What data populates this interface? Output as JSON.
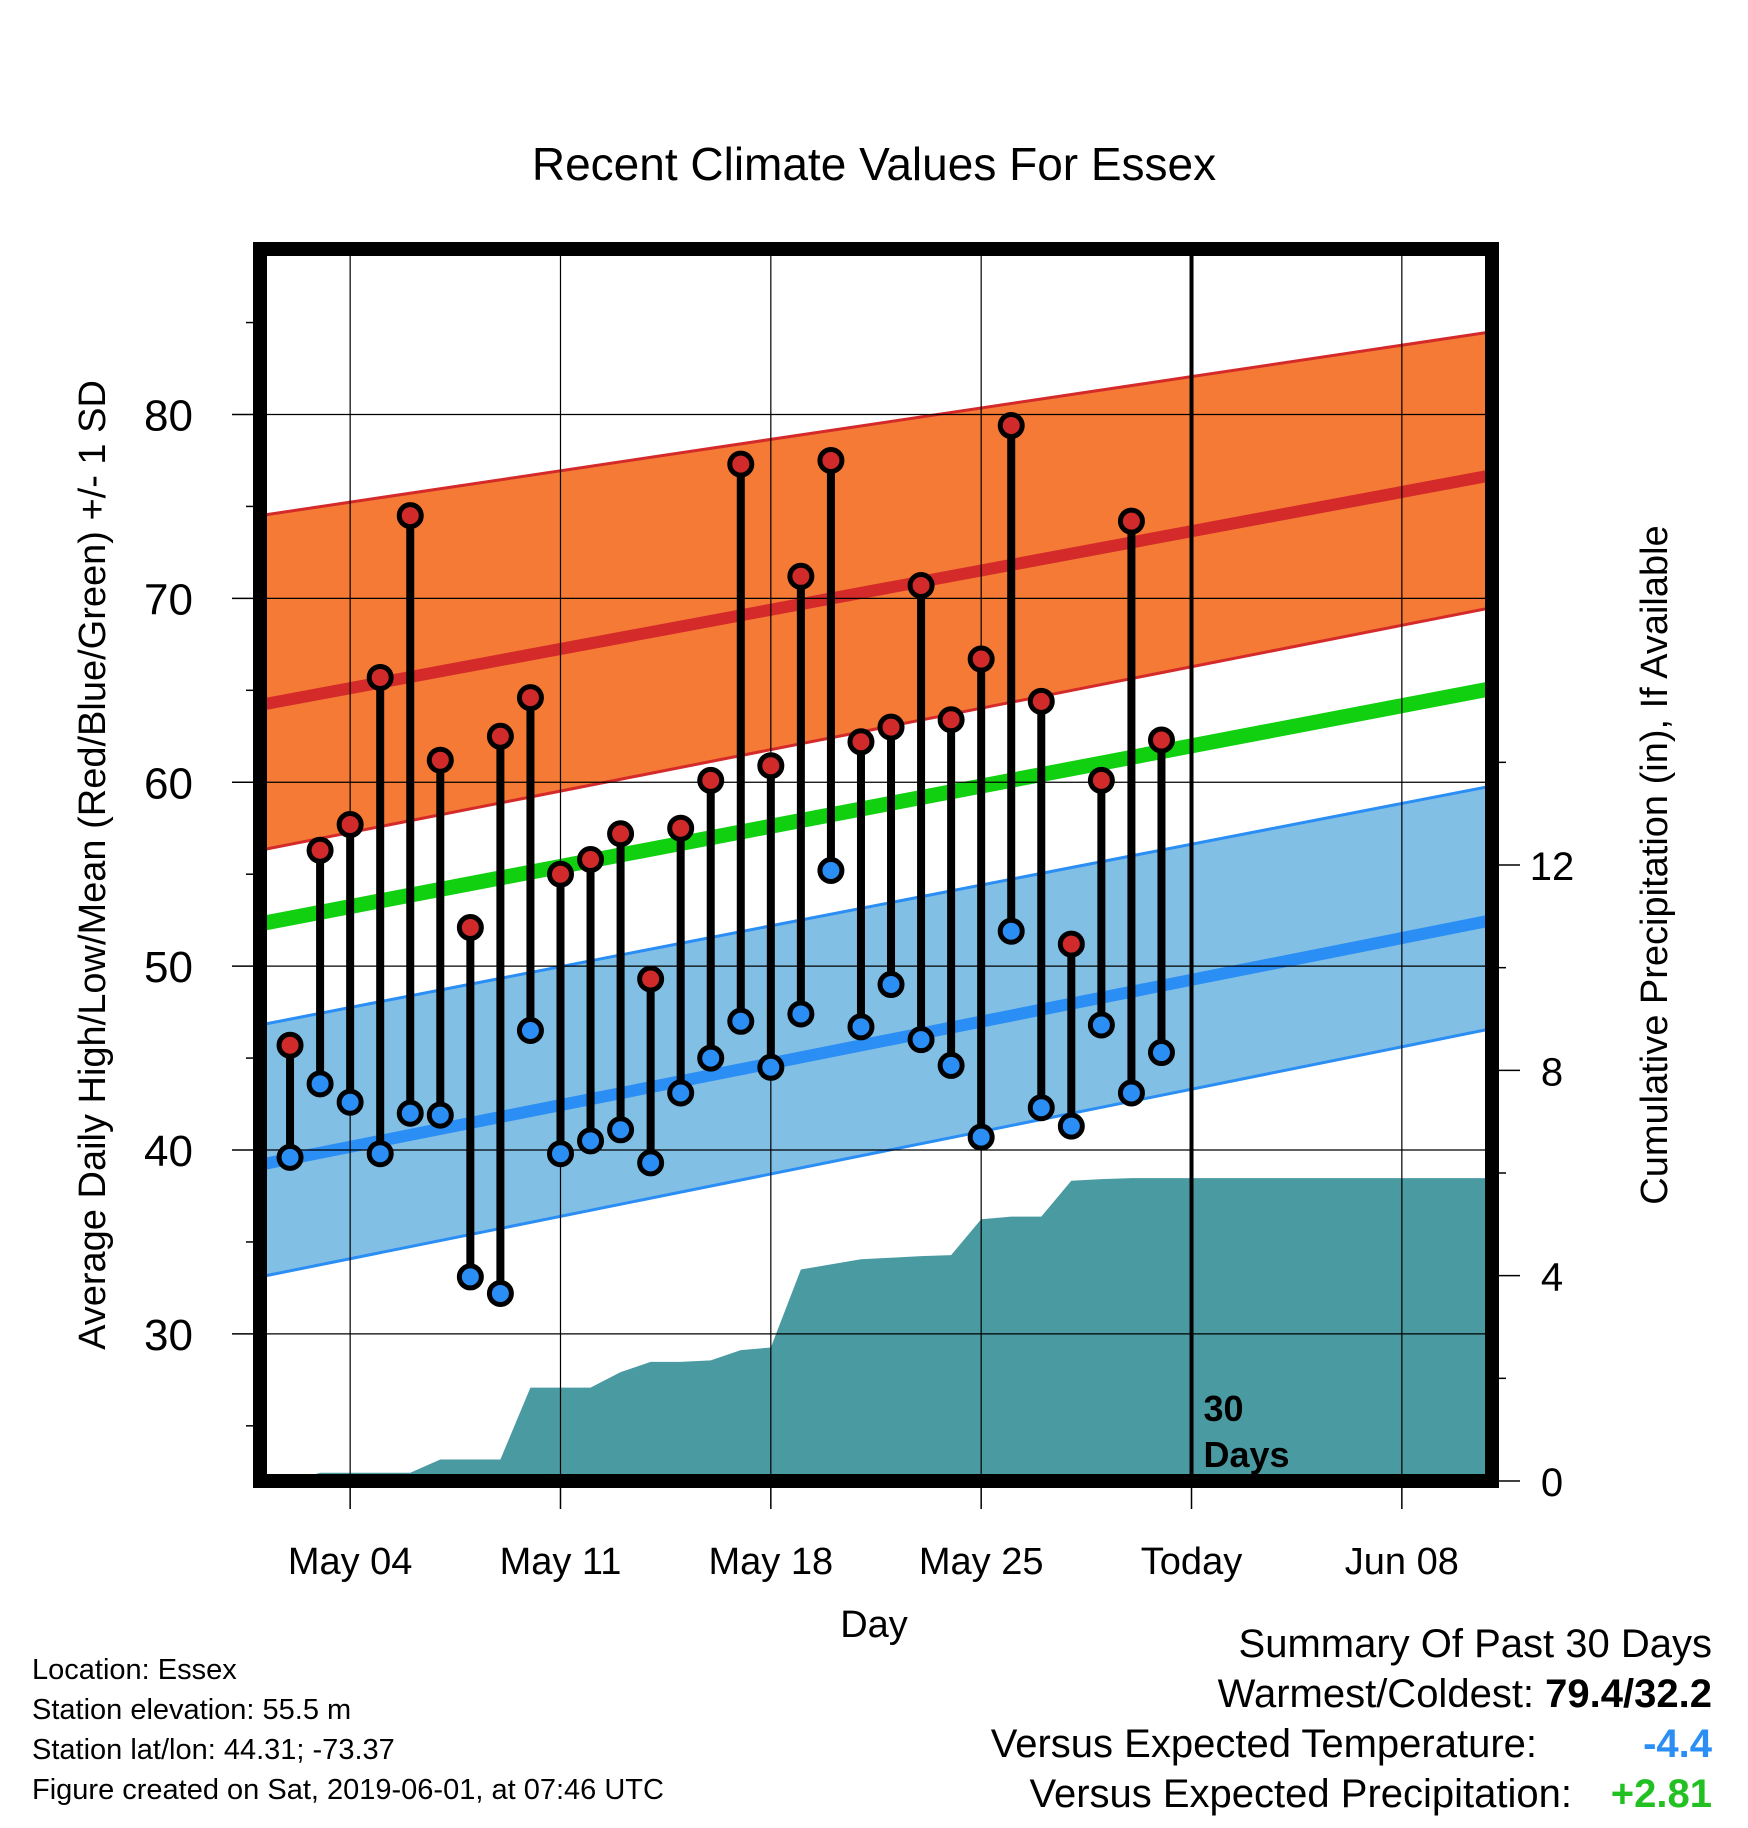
{
  "chart_data": {
    "type": "line",
    "title": "Recent Climate Values For Essex",
    "xlabel": "Day",
    "ylabel": "Average Daily High/Low/Mean (Red/Blue/Green) +/- 1 SD",
    "y2label": "Cumulative Precipitation (in), If Available",
    "x_domain": [
      "2019-05-01",
      "2019-06-11"
    ],
    "ylim": [
      22,
      89
    ],
    "y2lim": [
      0,
      24
    ],
    "y_ticks": [
      30,
      40,
      50,
      60,
      70,
      80
    ],
    "y2_ticks": [
      0,
      4,
      8,
      12
    ],
    "x_ticks": [
      {
        "date": "2019-05-04",
        "label": "May 04"
      },
      {
        "date": "2019-05-11",
        "label": "May 11"
      },
      {
        "date": "2019-05-18",
        "label": "May 18"
      },
      {
        "date": "2019-05-25",
        "label": "May 25"
      },
      {
        "date": "2019-06-01",
        "label": "Today"
      },
      {
        "date": "2019-06-08",
        "label": "Jun 08"
      }
    ],
    "today": "2019-06-01",
    "today_annotation": "30\nDays",
    "normals": {
      "dates": [
        "2019-05-01",
        "2019-06-11"
      ],
      "high_mean": [
        64.2,
        76.7
      ],
      "high_upper": [
        74.5,
        84.5
      ],
      "high_lower": [
        56.3,
        69.5
      ],
      "mean": [
        52.3,
        65.1
      ],
      "low_mean": [
        39.2,
        52.5
      ],
      "low_upper": [
        46.8,
        59.8
      ],
      "low_lower": [
        33.1,
        46.6
      ]
    },
    "daily": {
      "dates": [
        "2019-05-02",
        "2019-05-03",
        "2019-05-04",
        "2019-05-05",
        "2019-05-06",
        "2019-05-07",
        "2019-05-08",
        "2019-05-09",
        "2019-05-10",
        "2019-05-11",
        "2019-05-12",
        "2019-05-13",
        "2019-05-14",
        "2019-05-15",
        "2019-05-16",
        "2019-05-17",
        "2019-05-18",
        "2019-05-19",
        "2019-05-20",
        "2019-05-21",
        "2019-05-22",
        "2019-05-23",
        "2019-05-24",
        "2019-05-25",
        "2019-05-26",
        "2019-05-27",
        "2019-05-28",
        "2019-05-29",
        "2019-05-30",
        "2019-05-31"
      ],
      "high": [
        45.7,
        56.3,
        57.7,
        65.7,
        74.5,
        61.2,
        52.1,
        62.5,
        64.6,
        55.0,
        55.8,
        57.2,
        49.3,
        57.5,
        60.1,
        77.3,
        60.9,
        71.2,
        77.5,
        62.2,
        63.0,
        70.7,
        63.4,
        66.7,
        79.4,
        64.4,
        51.2,
        60.1,
        74.2,
        62.3
      ],
      "low": [
        39.6,
        43.6,
        42.6,
        39.8,
        42.0,
        41.9,
        33.1,
        32.2,
        46.5,
        39.8,
        40.5,
        41.1,
        39.3,
        43.1,
        45.0,
        47.0,
        44.5,
        47.4,
        55.2,
        46.7,
        49.0,
        46.0,
        44.6,
        40.7,
        51.9,
        42.3,
        41.3,
        46.8,
        43.1,
        45.3
      ]
    },
    "precip_cumulative": {
      "dates": [
        "2019-05-01",
        "2019-05-02",
        "2019-05-03",
        "2019-05-05",
        "2019-05-06",
        "2019-05-07",
        "2019-05-09",
        "2019-05-10",
        "2019-05-11",
        "2019-05-12",
        "2019-05-13",
        "2019-05-14",
        "2019-05-15",
        "2019-05-16",
        "2019-05-17",
        "2019-05-18",
        "2019-05-19",
        "2019-05-20",
        "2019-05-21",
        "2019-05-22",
        "2019-05-23",
        "2019-05-24",
        "2019-05-25",
        "2019-05-26",
        "2019-05-27",
        "2019-05-28",
        "2019-05-29",
        "2019-05-30",
        "2019-05-31",
        "2019-06-11"
      ],
      "values": [
        0.0,
        0.0,
        0.16,
        0.16,
        0.16,
        0.42,
        0.42,
        1.82,
        1.82,
        1.82,
        2.12,
        2.32,
        2.32,
        2.35,
        2.55,
        2.6,
        4.12,
        4.22,
        4.32,
        4.35,
        4.38,
        4.4,
        5.1,
        5.15,
        5.15,
        5.85,
        5.88,
        5.9,
        5.9,
        5.9
      ]
    },
    "colors": {
      "high_band": "#f47a35",
      "high_line": "#d42a2a",
      "low_band": "#82bfe5",
      "low_line": "#2a8ef5",
      "mean_line": "#10d010",
      "precip": "#4a9aa2",
      "high_dot": "#d02a2a",
      "low_dot": "#2a8ef5"
    }
  },
  "info": {
    "location": "Location: Essex",
    "elevation": "Station elevation: 55.5 m",
    "latlon": "Station lat/lon: 44.31; -73.37",
    "created": "Figure created on Sat, 2019-06-01, at 07:46 UTC"
  },
  "summary": {
    "title": "Summary Of Past 30 Days",
    "warmest_label": "Warmest/Coldest:",
    "warmest_value": "79.4/32.2",
    "temp_label": "Versus Expected Temperature:",
    "temp_value": "-4.4",
    "temp_color": "#2a8ef5",
    "precip_label": "Versus Expected Precipitation:",
    "precip_value": "+2.81",
    "precip_color": "#22c022"
  }
}
